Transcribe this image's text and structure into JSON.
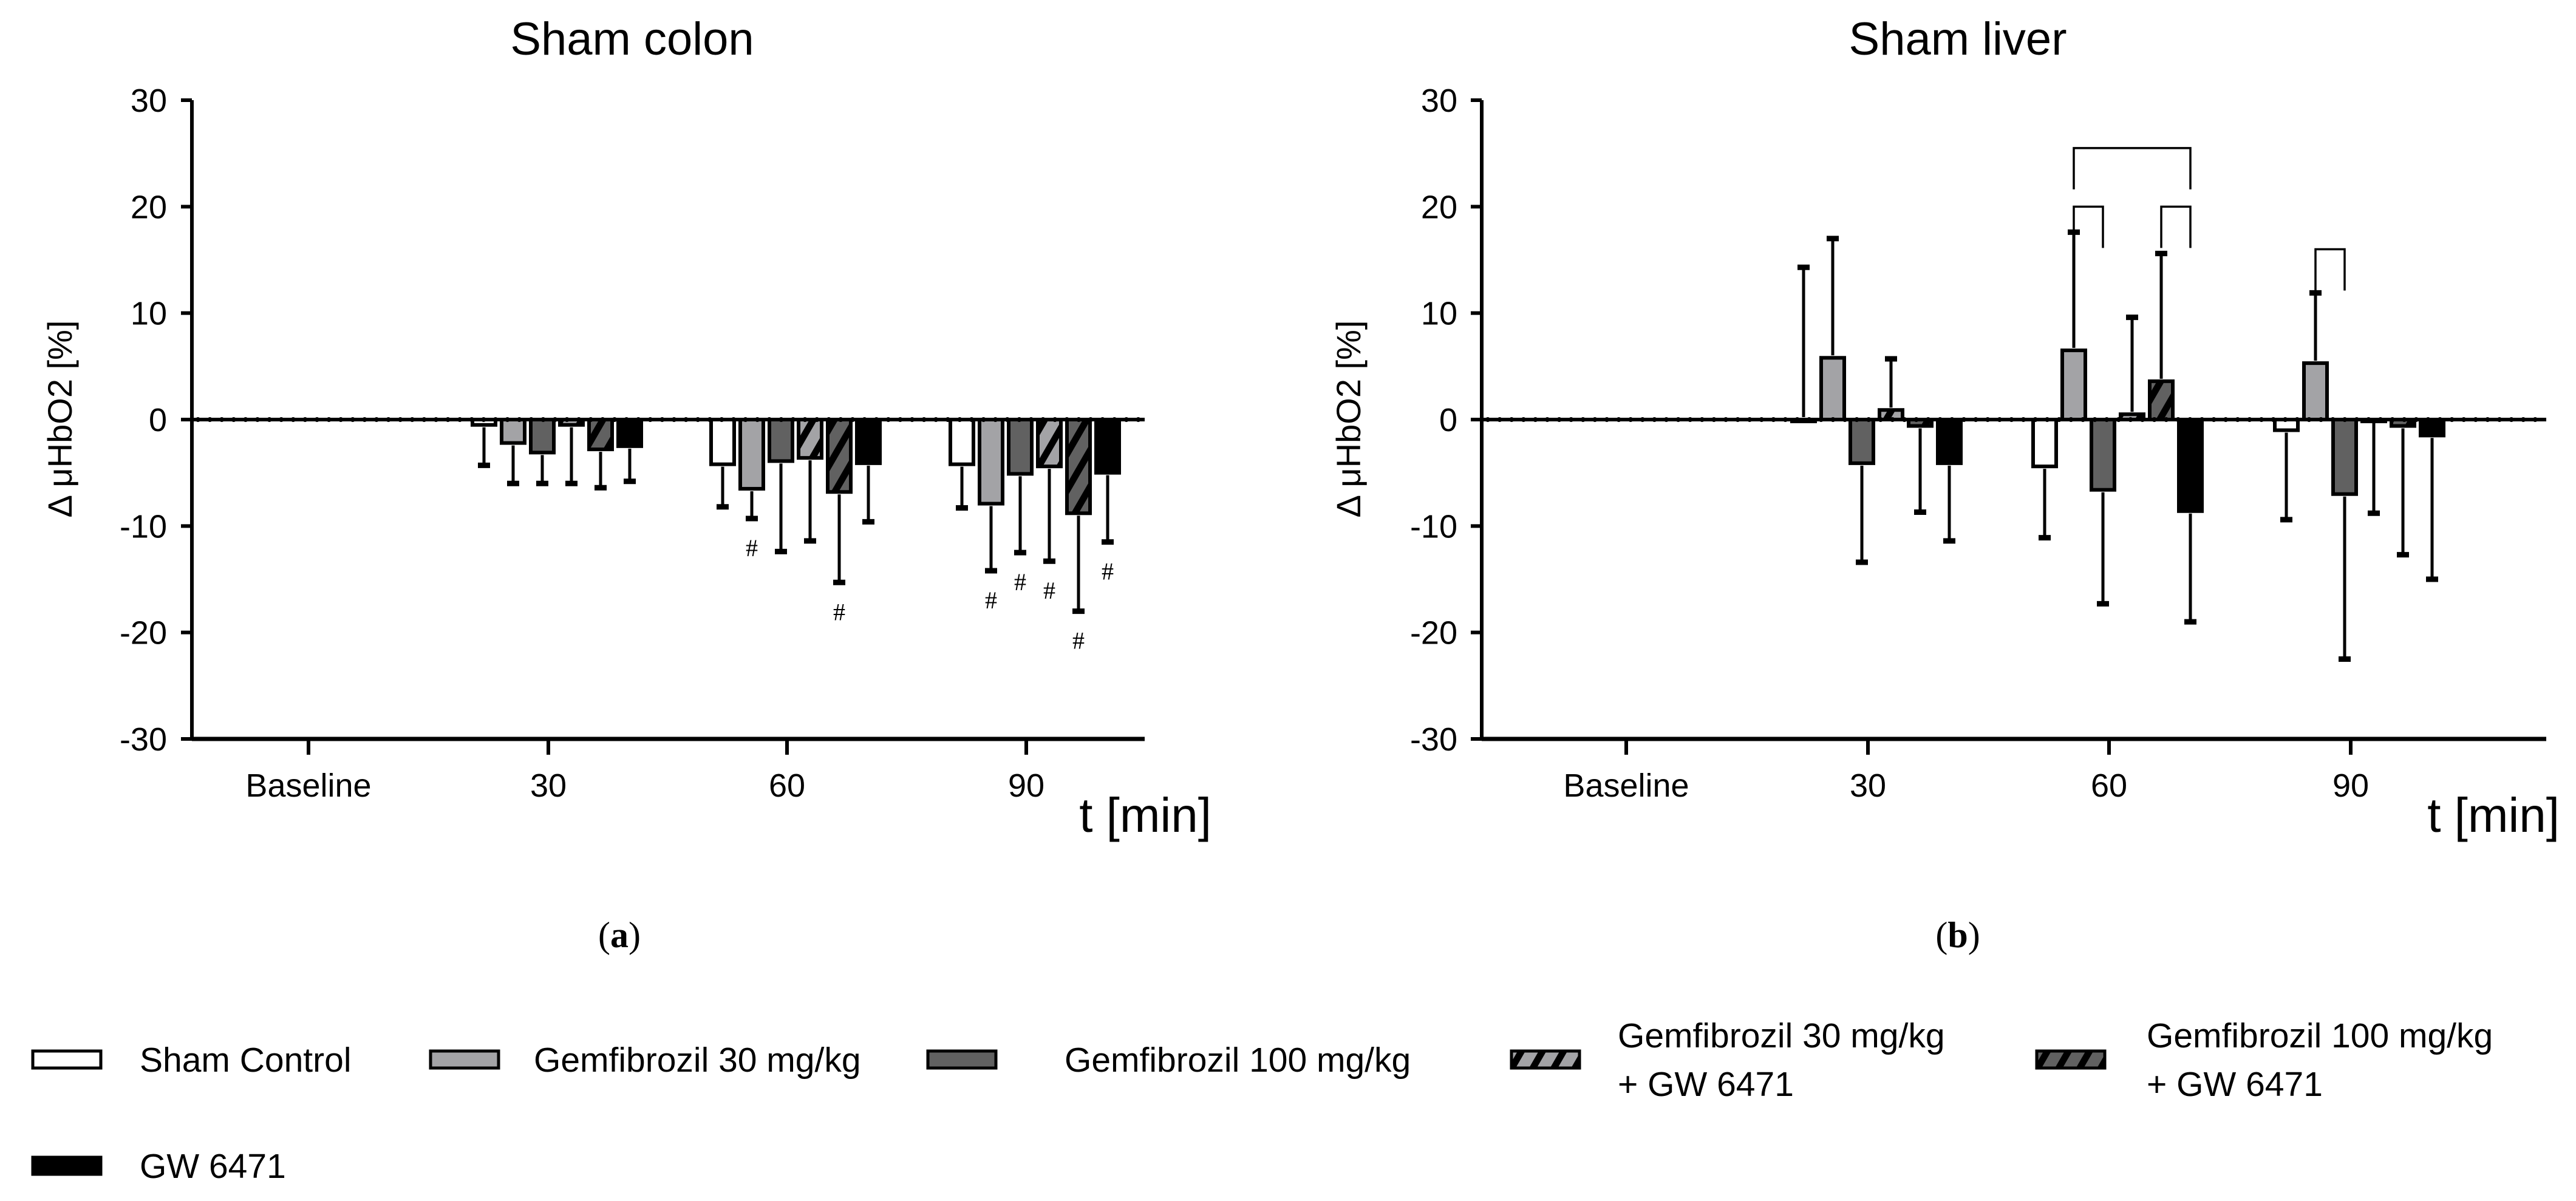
{
  "series_styles": [
    {
      "name": "Sham Control",
      "fill": "#ffffff",
      "hatch": false
    },
    {
      "name": "Gemfibrozil 30 mg/kg",
      "fill": "#a3a3a6",
      "hatch": false
    },
    {
      "name": "Gemfibrozil 100 mg/kg",
      "fill": "#616161",
      "hatch": false
    },
    {
      "name": "Gemfibrozil 30 mg/kg + GW 6471",
      "fill": "#a3a3a6",
      "hatch": true
    },
    {
      "name": "Gemfibrozil 100 mg/kg + GW 6471",
      "fill": "#616161",
      "hatch": true
    },
    {
      "name": "GW 6471",
      "fill": "#000000",
      "hatch": false
    }
  ],
  "legend": {
    "items": [
      {
        "lines": [
          "Sham Control"
        ]
      },
      {
        "lines": [
          "Gemfibrozil 30 mg/kg"
        ]
      },
      {
        "lines": [
          "Gemfibrozil 100 mg/kg"
        ]
      },
      {
        "lines": [
          "Gemfibrozil 30 mg/kg",
          "+ GW 6471"
        ]
      },
      {
        "lines": [
          "Gemfibrozil 100 mg/kg",
          "+ GW 6471"
        ]
      },
      {
        "lines": [
          "GW 6471"
        ]
      }
    ]
  },
  "chart_data": [
    {
      "type": "bar",
      "panel_label": "a",
      "title": "Sham colon",
      "ylabel": "Δ μHbO2 [%]",
      "xlabel": "t [min]",
      "ylim": [
        -30,
        30
      ],
      "yticks": [
        30,
        20,
        10,
        0,
        -10,
        -20,
        -30
      ],
      "categories": [
        "Baseline",
        "30",
        "60",
        "90"
      ],
      "series": [
        {
          "name": "Sham Control",
          "values": [
            0,
            -0.5,
            -4.2,
            -4.2
          ],
          "error_end": [
            0,
            -4.3,
            -8.2,
            -8.3
          ],
          "marks": [
            "",
            "",
            "",
            ""
          ]
        },
        {
          "name": "Gemfibrozil 30 mg/kg",
          "values": [
            0,
            -2.2,
            -6.5,
            -7.9
          ],
          "error_end": [
            0,
            -6.0,
            -9.3,
            -14.2
          ],
          "marks": [
            "",
            "",
            "#",
            "#"
          ]
        },
        {
          "name": "Gemfibrozil 100 mg/kg",
          "values": [
            0,
            -3.1,
            -3.9,
            -5.1
          ],
          "error_end": [
            0,
            -6.0,
            -12.4,
            -12.5
          ],
          "marks": [
            "",
            "",
            "",
            "#"
          ]
        },
        {
          "name": "Gemfibrozil 30 mg/kg + GW 6471",
          "values": [
            0,
            -0.5,
            -3.6,
            -4.4
          ],
          "error_end": [
            0,
            -6.0,
            -11.4,
            -13.3
          ],
          "marks": [
            "",
            "",
            "",
            "#"
          ]
        },
        {
          "name": "Gemfibrozil 100 mg/kg + GW 6471",
          "values": [
            0,
            -2.8,
            -6.8,
            -8.8
          ],
          "error_end": [
            0,
            -6.4,
            -15.3,
            -18.0
          ],
          "marks": [
            "",
            "",
            "#",
            "#"
          ]
        },
        {
          "name": "GW 6471",
          "values": [
            0,
            -2.5,
            -4.1,
            -5.0
          ],
          "error_end": [
            0,
            -5.8,
            -9.6,
            -11.5
          ],
          "marks": [
            "",
            "",
            "",
            "#"
          ]
        }
      ],
      "brackets": []
    },
    {
      "type": "bar",
      "panel_label": "b",
      "title": "Sham liver",
      "ylabel": "Δ μHbO2 [%]",
      "xlabel": "t [min]",
      "ylim": [
        -30,
        30
      ],
      "yticks": [
        30,
        20,
        10,
        0,
        -10,
        -20,
        -30
      ],
      "categories": [
        "Baseline",
        "30",
        "60",
        "90"
      ],
      "series": [
        {
          "name": "Sham Control",
          "values": [
            0,
            0,
            -4.4,
            -1.0
          ],
          "error_end": [
            0,
            14.3,
            -11.1,
            -9.4
          ],
          "marks": [
            "",
            "",
            "",
            ""
          ]
        },
        {
          "name": "Gemfibrozil 30 mg/kg",
          "values": [
            0,
            5.8,
            6.5,
            5.3
          ],
          "error_end": [
            0,
            17.0,
            17.6,
            11.9
          ],
          "marks": [
            "",
            "",
            "",
            ""
          ]
        },
        {
          "name": "Gemfibrozil 100 mg/kg",
          "values": [
            0,
            -4.1,
            -6.6,
            -7.0
          ],
          "error_end": [
            0,
            -13.4,
            -17.3,
            -22.5
          ],
          "marks": [
            "",
            "",
            "",
            ""
          ]
        },
        {
          "name": "Gemfibrozil 30 mg/kg + GW 6471",
          "values": [
            0,
            0.9,
            0.5,
            0
          ],
          "error_end": [
            0,
            5.7,
            9.6,
            -8.8
          ],
          "marks": [
            "",
            "",
            "",
            ""
          ]
        },
        {
          "name": "Gemfibrozil 100 mg/kg + GW 6471",
          "values": [
            0,
            -0.6,
            3.6,
            -0.6
          ],
          "error_end": [
            0,
            -8.7,
            15.6,
            -12.7
          ],
          "marks": [
            "",
            "",
            "",
            ""
          ]
        },
        {
          "name": "GW 6471",
          "values": [
            0,
            -4.1,
            -8.6,
            -1.5
          ],
          "error_end": [
            0,
            -11.4,
            -19.0,
            -15.0
          ],
          "marks": [
            "",
            "",
            "",
            ""
          ]
        }
      ],
      "brackets": [
        {
          "category": "60",
          "from_series": 1,
          "to_series": 2,
          "level": 20.0
        },
        {
          "category": "60",
          "from_series": 1,
          "to_series": 5,
          "level": 25.5
        },
        {
          "category": "60",
          "from_series": 4,
          "to_series": 5,
          "level": 20.0
        },
        {
          "category": "90",
          "from_series": 1,
          "to_series": 2,
          "level": 16.0
        }
      ]
    }
  ]
}
